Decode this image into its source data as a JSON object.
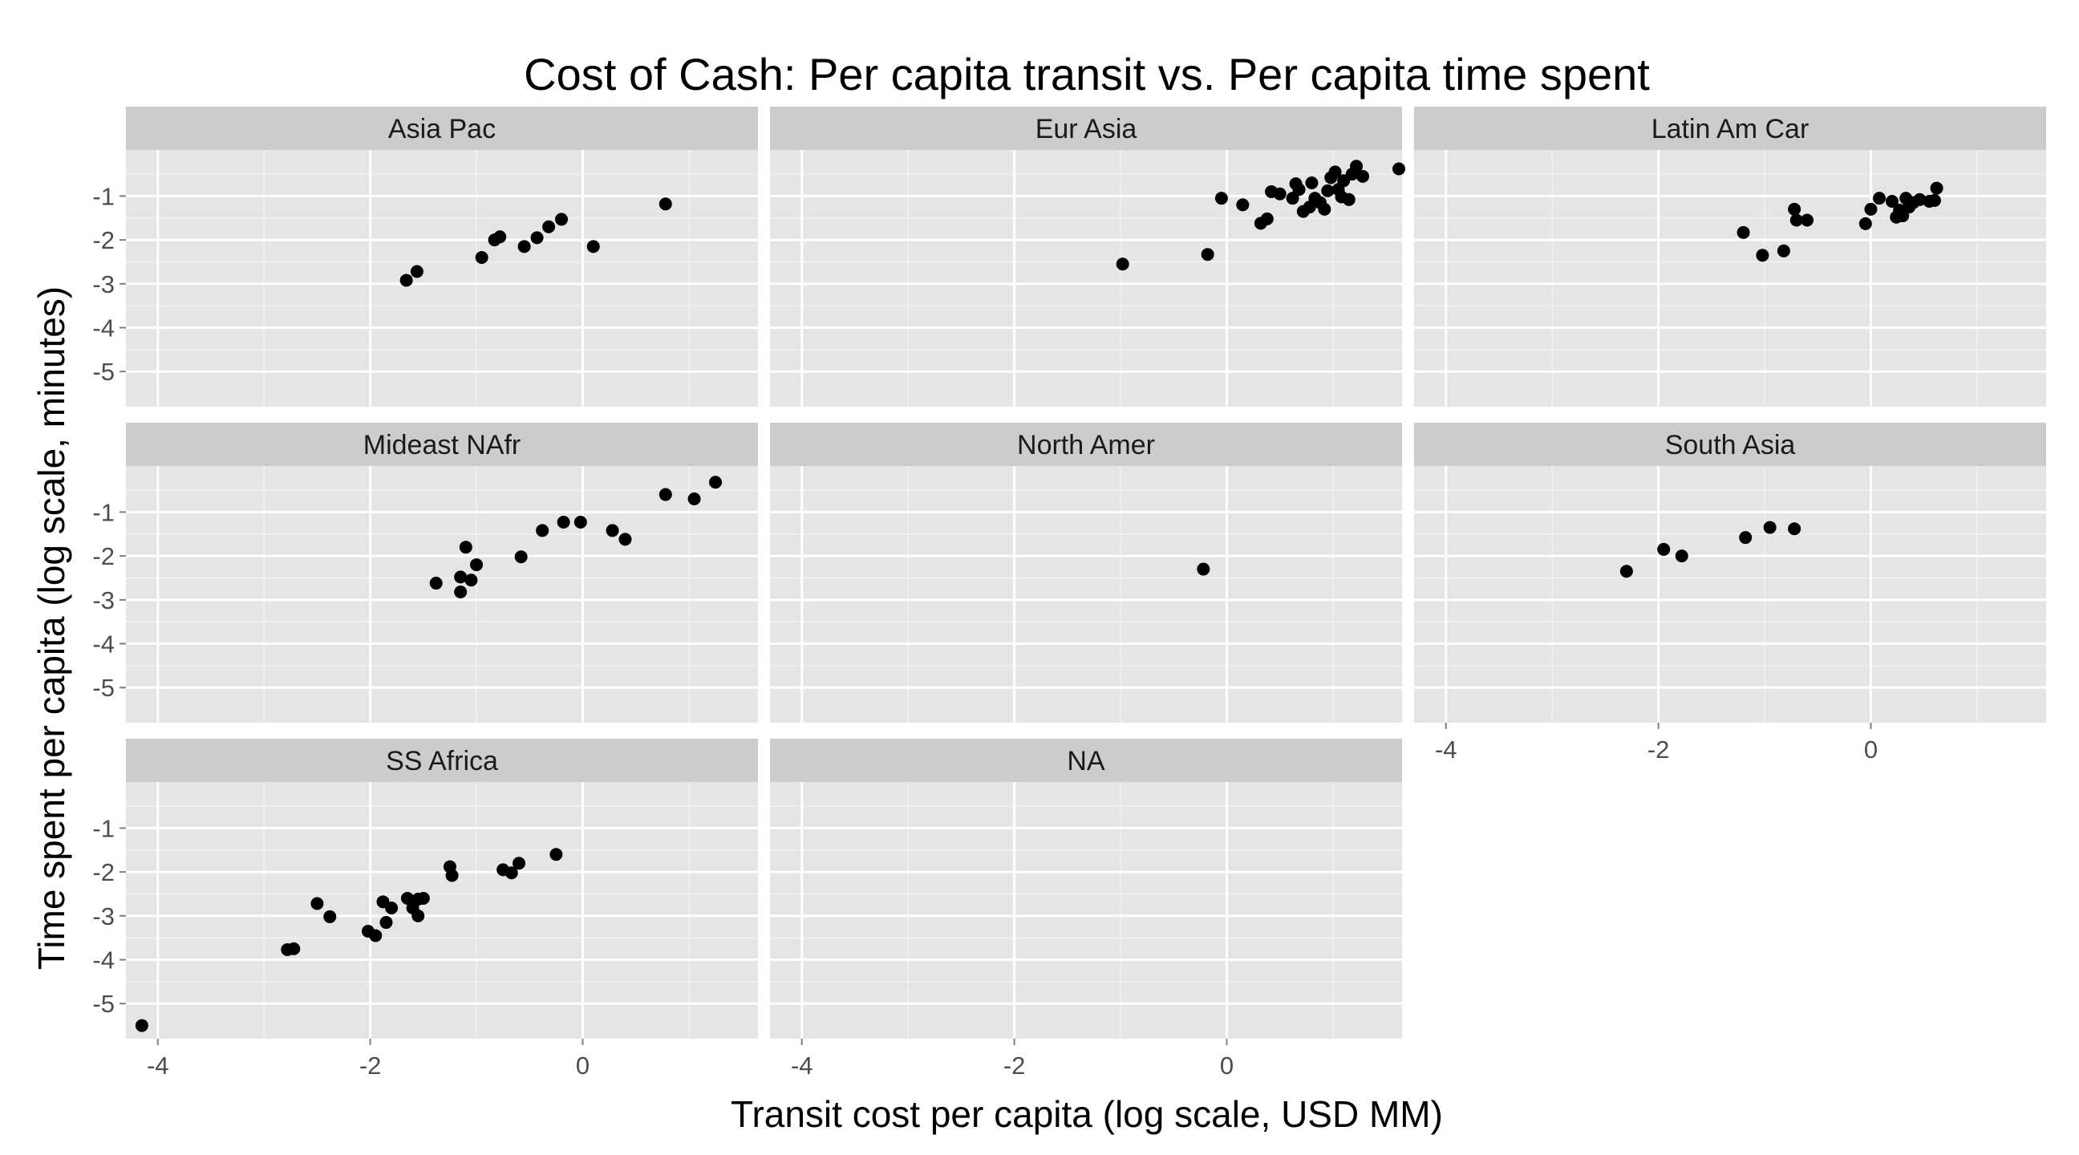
{
  "chart_data": {
    "type": "scatter",
    "title": "Cost of Cash: Per capita transit vs. Per capita time spent",
    "xlabel": "Transit cost per capita (log scale, USD MM)",
    "ylabel": "Time spent per capita (log scale, minutes)",
    "xlim": [
      -4.3,
      1.65
    ],
    "ylim": [
      -5.8,
      0.05
    ],
    "x_ticks": [
      -4,
      -2,
      0
    ],
    "x_tick_labels": [
      "-4",
      "-2",
      "0"
    ],
    "y_ticks": [
      -1,
      -2,
      -3,
      -4,
      -5
    ],
    "y_tick_labels": [
      "-1",
      "-2",
      "-3",
      "-4",
      "-5"
    ],
    "grid": true,
    "legend": "none",
    "colors": {
      "panel": "#e5e5e5",
      "strip": "#cccccc",
      "grid_major": "#ffffff",
      "grid_minor": "#f2f2f2",
      "point": "#000000",
      "tick_label": "#4d4d4d"
    },
    "panels": [
      {
        "name": "Asia Pac",
        "points": [
          [
            -1.66,
            -2.92
          ],
          [
            -1.56,
            -2.72
          ],
          [
            -0.95,
            -2.4
          ],
          [
            -0.83,
            -2.0
          ],
          [
            -0.78,
            -1.93
          ],
          [
            -0.55,
            -2.15
          ],
          [
            -0.43,
            -1.95
          ],
          [
            -0.32,
            -1.7
          ],
          [
            -0.2,
            -1.53
          ],
          [
            0.1,
            -2.15
          ],
          [
            0.78,
            -1.18
          ]
        ]
      },
      {
        "name": "Eur Asia",
        "points": [
          [
            -0.98,
            -2.55
          ],
          [
            -0.18,
            -2.33
          ],
          [
            -0.05,
            -1.05
          ],
          [
            0.15,
            -1.2
          ],
          [
            0.32,
            -1.62
          ],
          [
            0.38,
            -1.52
          ],
          [
            0.42,
            -0.9
          ],
          [
            0.5,
            -0.95
          ],
          [
            0.62,
            -1.05
          ],
          [
            0.65,
            -0.72
          ],
          [
            0.68,
            -0.85
          ],
          [
            0.72,
            -1.35
          ],
          [
            0.78,
            -1.25
          ],
          [
            0.8,
            -0.7
          ],
          [
            0.83,
            -1.05
          ],
          [
            0.88,
            -1.15
          ],
          [
            0.92,
            -1.3
          ],
          [
            0.95,
            -0.88
          ],
          [
            0.98,
            -0.58
          ],
          [
            1.02,
            -0.45
          ],
          [
            1.05,
            -0.85
          ],
          [
            1.08,
            -1.02
          ],
          [
            1.1,
            -0.65
          ],
          [
            1.15,
            -1.08
          ],
          [
            1.18,
            -0.5
          ],
          [
            1.22,
            -0.32
          ],
          [
            1.28,
            -0.55
          ],
          [
            1.62,
            -0.38
          ]
        ]
      },
      {
        "name": "Latin Am Car",
        "points": [
          [
            -1.2,
            -1.83
          ],
          [
            -1.02,
            -2.35
          ],
          [
            -0.82,
            -2.25
          ],
          [
            -0.72,
            -1.3
          ],
          [
            -0.7,
            -1.55
          ],
          [
            -0.6,
            -1.55
          ],
          [
            -0.05,
            -1.63
          ],
          [
            0.0,
            -1.3
          ],
          [
            0.08,
            -1.05
          ],
          [
            0.2,
            -1.12
          ],
          [
            0.24,
            -1.48
          ],
          [
            0.27,
            -1.32
          ],
          [
            0.3,
            -1.45
          ],
          [
            0.33,
            -1.05
          ],
          [
            0.36,
            -1.25
          ],
          [
            0.4,
            -1.15
          ],
          [
            0.46,
            -1.08
          ],
          [
            0.55,
            -1.12
          ],
          [
            0.6,
            -1.1
          ],
          [
            0.62,
            -0.82
          ]
        ]
      },
      {
        "name": "Mideast NAfr",
        "points": [
          [
            -1.38,
            -2.62
          ],
          [
            -1.15,
            -2.82
          ],
          [
            -1.15,
            -2.48
          ],
          [
            -1.1,
            -1.8
          ],
          [
            -1.05,
            -2.55
          ],
          [
            -1.0,
            -2.2
          ],
          [
            -0.58,
            -2.02
          ],
          [
            -0.38,
            -1.42
          ],
          [
            -0.18,
            -1.23
          ],
          [
            -0.02,
            -1.23
          ],
          [
            0.28,
            -1.42
          ],
          [
            0.4,
            -1.62
          ],
          [
            0.78,
            -0.6
          ],
          [
            1.05,
            -0.7
          ],
          [
            1.25,
            -0.32
          ]
        ]
      },
      {
        "name": "North Amer",
        "points": [
          [
            -0.22,
            -2.3
          ]
        ]
      },
      {
        "name": "South Asia",
        "points": [
          [
            -2.3,
            -2.35
          ],
          [
            -1.95,
            -1.85
          ],
          [
            -1.78,
            -2.0
          ],
          [
            -1.18,
            -1.58
          ],
          [
            -0.95,
            -1.35
          ],
          [
            -0.72,
            -1.38
          ]
        ]
      },
      {
        "name": "SS Africa",
        "points": [
          [
            -4.15,
            -5.5
          ],
          [
            -2.78,
            -3.77
          ],
          [
            -2.72,
            -3.75
          ],
          [
            -2.5,
            -2.72
          ],
          [
            -2.38,
            -3.02
          ],
          [
            -2.02,
            -3.35
          ],
          [
            -1.95,
            -3.45
          ],
          [
            -1.88,
            -2.68
          ],
          [
            -1.85,
            -3.15
          ],
          [
            -1.8,
            -2.82
          ],
          [
            -1.65,
            -2.6
          ],
          [
            -1.6,
            -2.82
          ],
          [
            -1.55,
            -2.62
          ],
          [
            -1.55,
            -3.0
          ],
          [
            -1.5,
            -2.6
          ],
          [
            -1.25,
            -1.88
          ],
          [
            -1.23,
            -2.08
          ],
          [
            -0.75,
            -1.95
          ],
          [
            -0.67,
            -2.02
          ],
          [
            -0.6,
            -1.8
          ],
          [
            -0.25,
            -1.6
          ]
        ]
      },
      {
        "name": "NA",
        "points": []
      }
    ]
  }
}
